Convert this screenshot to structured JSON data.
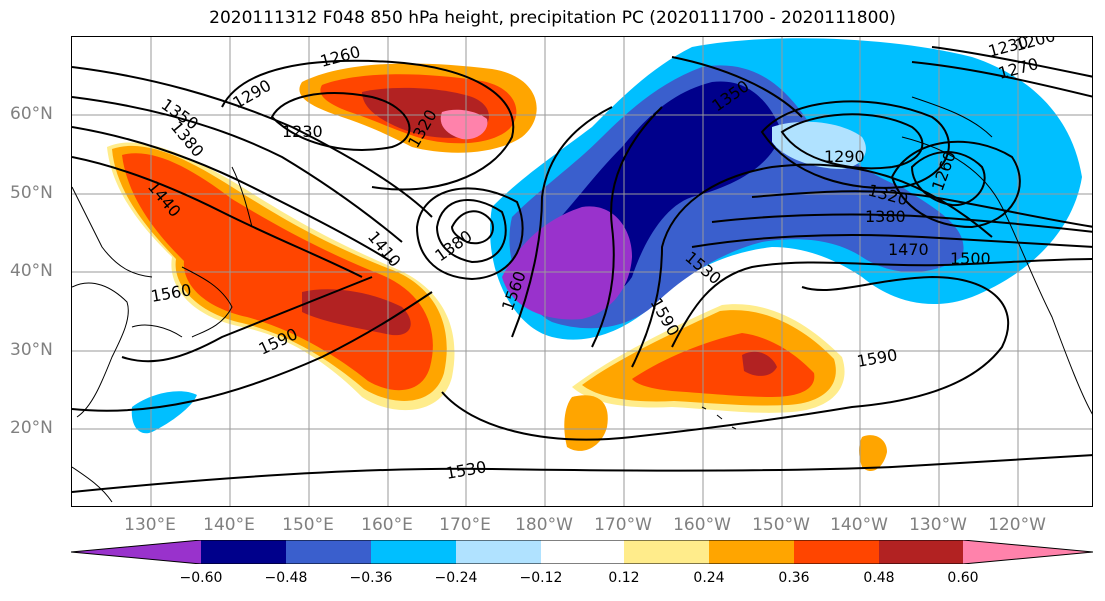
{
  "title": "2020111312 F048 850 hPa height, precipitation PC (2020111700 - 2020111800)",
  "lon_ticks": [
    "130°E",
    "140°E",
    "150°E",
    "160°E",
    "170°E",
    "180°W",
    "170°W",
    "160°W",
    "150°W",
    "140°W",
    "130°W",
    "120°W"
  ],
  "lat_ticks": [
    "60°N",
    "50°N",
    "40°N",
    "30°N",
    "20°N"
  ],
  "colorbar": {
    "labels": [
      "−0.60",
      "−0.48",
      "−0.36",
      "−0.24",
      "−0.12",
      "0.12",
      "0.24",
      "0.36",
      "0.48",
      "0.60"
    ],
    "colors": [
      "#9932cc",
      "#00008b",
      "#3a5fcd",
      "#00bfff",
      "#b0e2ff",
      "#ffffff",
      "#ffec8b",
      "#ffa500",
      "#ff4500",
      "#b22222",
      "#ff82ab"
    ]
  },
  "contour_labels": [
    "1260",
    "1290",
    "1230",
    "1350",
    "1380",
    "1320",
    "1440",
    "1410",
    "1380",
    "1560",
    "1590",
    "1350",
    "1290",
    "1320",
    "1380",
    "1470",
    "1500",
    "1530",
    "1560",
    "1590",
    "1590",
    "1530",
    "1260",
    "1230",
    "1200",
    "1270"
  ],
  "fill_colors": {
    "purple": "#9932cc",
    "navy": "#00008b",
    "blue": "#3a5fcd",
    "sky": "#00bfff",
    "light": "#b0e2ff",
    "yellow": "#ffec8b",
    "orange": "#ffa500",
    "red": "#ff4500",
    "dark_red": "#b22222",
    "pink": "#ff82ab"
  }
}
